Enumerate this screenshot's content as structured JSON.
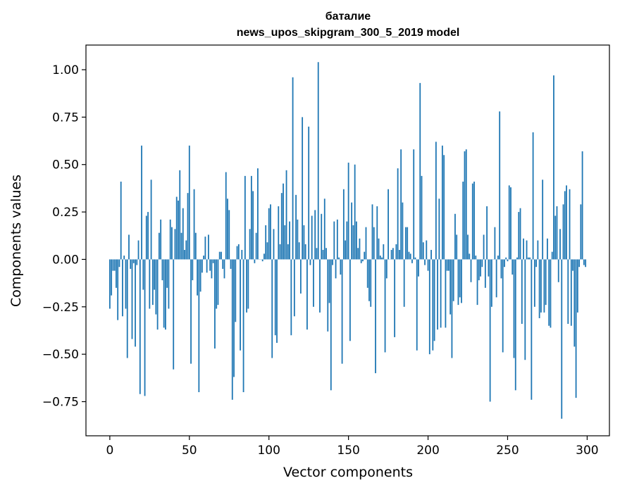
{
  "chart_data": {
    "type": "bar",
    "title_line1": "баталие",
    "title_line2": "news_upos_skipgram_300_5_2019 model",
    "xlabel": "Vector components",
    "ylabel": "Components values",
    "xlim": [
      -15,
      314
    ],
    "ylim": [
      -0.93,
      1.13
    ],
    "xticks": [
      0,
      50,
      100,
      150,
      200,
      250,
      300
    ],
    "xtick_labels": [
      "0",
      "50",
      "100",
      "150",
      "200",
      "250",
      "300"
    ],
    "yticks": [
      1.0,
      0.75,
      0.5,
      0.25,
      0.0,
      -0.25,
      -0.5,
      -0.75
    ],
    "ytick_labels": [
      "1.00",
      "0.75",
      "0.50",
      "0.25",
      "0.00",
      "−0.25",
      "−0.50",
      "−0.75"
    ],
    "color": "#1f77b4",
    "values": [
      -0.26,
      -0.19,
      -0.06,
      -0.06,
      -0.15,
      -0.32,
      -0.04,
      0.41,
      -0.3,
      0.02,
      -0.26,
      -0.52,
      0.13,
      -0.05,
      -0.42,
      -0.02,
      -0.46,
      -0.03,
      0.1,
      -0.71,
      0.6,
      -0.16,
      -0.72,
      0.23,
      0.25,
      -0.26,
      0.42,
      -0.24,
      -0.16,
      -0.29,
      -0.37,
      0.14,
      0.21,
      -0.11,
      -0.36,
      -0.37,
      -0.15,
      -0.26,
      0.21,
      0.17,
      -0.58,
      0.16,
      0.33,
      0.31,
      0.47,
      0.14,
      0.27,
      0.05,
      0.1,
      0.35,
      0.6,
      -0.55,
      -0.11,
      0.37,
      0.14,
      -0.19,
      -0.7,
      -0.17,
      -0.07,
      0.02,
      0.12,
      -0.07,
      0.13,
      -0.06,
      -0.1,
      -0.02,
      -0.47,
      -0.26,
      -0.24,
      0.04,
      0.04,
      -0.05,
      -0.1,
      0.46,
      0.32,
      0.26,
      -0.05,
      -0.74,
      -0.62,
      -0.33,
      0.07,
      0.08,
      -0.48,
      0.05,
      -0.7,
      0.44,
      -0.28,
      -0.26,
      0.16,
      0.44,
      0.36,
      -0.02,
      0.14,
      0.48,
      0.0,
      0.0,
      -0.01,
      0.03,
      0.18,
      0.09,
      0.27,
      0.29,
      -0.52,
      0.16,
      -0.4,
      -0.44,
      0.28,
      0.08,
      0.35,
      0.4,
      0.18,
      0.47,
      0.08,
      0.2,
      -0.4,
      0.96,
      -0.3,
      0.34,
      0.21,
      0.09,
      -0.18,
      0.75,
      0.18,
      0.08,
      -0.37,
      0.7,
      -0.03,
      0.23,
      -0.25,
      0.26,
      0.06,
      1.04,
      -0.28,
      0.24,
      0.05,
      0.32,
      0.06,
      -0.38,
      -0.23,
      -0.69,
      -0.03,
      0.2,
      -0.1,
      0.21,
      0.01,
      -0.08,
      -0.55,
      0.37,
      0.1,
      0.2,
      0.51,
      -0.43,
      0.3,
      0.18,
      0.5,
      0.2,
      0.06,
      0.11,
      -0.02,
      -0.01,
      0.04,
      0.17,
      -0.15,
      -0.22,
      -0.25,
      0.29,
      0.17,
      -0.6,
      0.28,
      0.11,
      0.02,
      0.01,
      0.08,
      -0.49,
      -0.1,
      0.37,
      0.0,
      0.05,
      0.06,
      -0.41,
      0.08,
      0.48,
      0.05,
      0.58,
      0.3,
      -0.25,
      0.17,
      0.17,
      0.04,
      0.03,
      -0.02,
      0.58,
      0.01,
      -0.48,
      -0.09,
      0.93,
      0.44,
      0.09,
      -0.03,
      0.1,
      -0.06,
      -0.5,
      0.05,
      -0.48,
      -0.43,
      0.62,
      -0.37,
      0.32,
      -0.36,
      0.6,
      0.55,
      -0.36,
      -0.06,
      -0.06,
      -0.29,
      -0.52,
      -0.22,
      0.24,
      0.13,
      -0.24,
      -0.2,
      -0.23,
      0.41,
      0.57,
      0.58,
      0.13,
      0.03,
      -0.12,
      0.4,
      0.41,
      0.02,
      -0.24,
      -0.11,
      -0.09,
      -0.04,
      0.13,
      -0.15,
      0.28,
      -0.09,
      -0.75,
      -0.25,
      0.0,
      0.17,
      -0.2,
      0.02,
      0.78,
      -0.1,
      -0.49,
      -0.04,
      0.01,
      -0.01,
      0.39,
      0.38,
      -0.08,
      -0.52,
      -0.69,
      0.01,
      0.25,
      0.27,
      -0.34,
      0.11,
      -0.53,
      0.1,
      0.01,
      0.01,
      -0.74,
      0.67,
      -0.25,
      -0.04,
      0.1,
      -0.31,
      -0.28,
      0.42,
      -0.28,
      -0.24,
      0.11,
      -0.35,
      -0.36,
      0.04,
      0.97,
      0.23,
      0.28,
      -0.12,
      0.16,
      -0.84,
      0.29,
      0.36,
      0.39,
      -0.34,
      0.37,
      -0.35,
      -0.06,
      -0.46,
      -0.73,
      -0.28,
      -0.04,
      0.29,
      0.57,
      -0.03,
      -0.04
    ]
  }
}
